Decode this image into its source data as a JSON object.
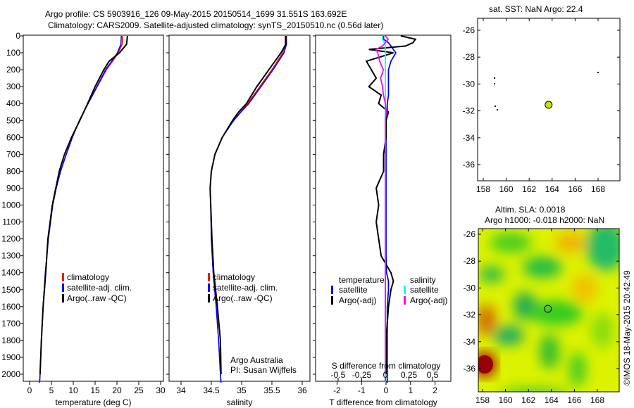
{
  "header": {
    "line1": "Argo profile: CS 5903916_126 09-May-2015 20150514_1699 31.551S 163.692E",
    "line2": "Climatology: CARS2009. Satellite-adjusted climatology: synTS_20150510.nc (0.56d later)"
  },
  "colors": {
    "clim": "#ff0000",
    "sat": "#0000ff",
    "argo": "#000000",
    "sal_sat": "#00ffff",
    "sal_argo": "#ff00ff"
  },
  "chart_data": [
    {
      "type": "line",
      "name": "temperature",
      "xlabel": "temperature (deg C)",
      "xlim": [
        -1,
        31
      ],
      "ylim": [
        2050,
        0
      ],
      "xticks": [
        "0",
        "5",
        "10",
        "15",
        "20",
        "25",
        "30"
      ],
      "xtick_values": [
        0,
        5,
        10,
        15,
        20,
        25,
        30
      ],
      "yticks": [
        "0",
        "100",
        "200",
        "300",
        "400",
        "500",
        "600",
        "700",
        "800",
        "900",
        "1000",
        "1100",
        "1200",
        "1300",
        "1400",
        "1500",
        "1600",
        "1700",
        "1800",
        "1900",
        "2000"
      ],
      "depth": [
        0,
        50,
        100,
        150,
        200,
        300,
        400,
        500,
        600,
        700,
        800,
        900,
        1000,
        1200,
        1400,
        1600,
        1800,
        2000,
        2050
      ],
      "series": [
        {
          "name": "climatology",
          "values": [
            21.3,
            21.2,
            20.3,
            19,
            17.6,
            15.5,
            13.4,
            11.4,
            9.8,
            8.4,
            7.1,
            6.1,
            5.3,
            4.3,
            3.6,
            3.1,
            2.7,
            2.4,
            2.3
          ]
        },
        {
          "name": "satellite-adj. clim.",
          "values": [
            21.0,
            20.9,
            20.1,
            18.8,
            17.4,
            15.4,
            13.4,
            11.4,
            9.8,
            8.4,
            7.1,
            6.1,
            5.3,
            4.3,
            3.6,
            3.1,
            2.7,
            2.4,
            2.3
          ]
        },
        {
          "name": "Argo(..raw -QC)",
          "values": [
            22.4,
            22.2,
            20.6,
            18.2,
            17.0,
            15.0,
            13.3,
            11.5,
            9.6,
            8.0,
            6.8,
            6.0,
            5.2,
            4.2,
            3.7,
            3.1,
            2.7,
            2.4
          ]
        }
      ],
      "legend": [
        "climatology",
        "satellite-adj. clim.",
        "Argo(..raw -QC)"
      ]
    },
    {
      "type": "line",
      "name": "salinity",
      "xlabel": "salinity",
      "xlim": [
        33.8,
        36.2
      ],
      "ylim": [
        2050,
        0
      ],
      "xticks": [
        "34",
        "34.5",
        "35",
        "35.5",
        "36"
      ],
      "xtick_values": [
        34,
        34.5,
        35,
        35.5,
        36
      ],
      "depth": [
        0,
        50,
        100,
        200,
        300,
        400,
        450,
        500,
        600,
        700,
        800,
        900,
        1000,
        1200,
        1400,
        1600,
        1800,
        2000,
        2050
      ],
      "series": [
        {
          "name": "climatology",
          "values": [
            35.72,
            35.72,
            35.68,
            35.5,
            35.3,
            35.1,
            34.98,
            34.86,
            34.68,
            34.56,
            34.5,
            34.48,
            34.49,
            34.5,
            34.53,
            34.58,
            34.62,
            34.65,
            34.66
          ]
        },
        {
          "name": "satellite-adj. clim.",
          "values": [
            35.74,
            35.74,
            35.7,
            35.52,
            35.32,
            35.12,
            34.99,
            34.87,
            34.68,
            34.56,
            34.5,
            34.48,
            34.49,
            34.5,
            34.53,
            34.58,
            34.62,
            34.65,
            34.66
          ]
        },
        {
          "name": "Argo(..raw -QC)",
          "values": [
            35.73,
            35.73,
            35.65,
            35.45,
            35.25,
            35.08,
            34.95,
            34.85,
            34.68,
            34.56,
            34.5,
            34.48,
            34.49,
            34.51,
            34.54,
            34.6,
            34.65,
            34.66
          ]
        }
      ],
      "legend": [
        "climatology",
        "satellite-adj. clim.",
        "Argo(..raw -QC)"
      ],
      "annotation": [
        "Argo Australia",
        "PI: Susan Wijffels"
      ]
    },
    {
      "type": "line",
      "name": "difference",
      "xlabel": "T difference from climatology",
      "xlabel2": "S difference from climatology",
      "xlim": [
        -2.9,
        2.9
      ],
      "ylim": [
        2050,
        0
      ],
      "xticks": [
        "-2",
        "-1",
        "0",
        "1",
        "2"
      ],
      "xtick_values": [
        -2,
        -1,
        0,
        1,
        2
      ],
      "xticks2": [
        "-0.5",
        "-0.25",
        "0",
        "0.25",
        "0.5"
      ],
      "xtick2_values": [
        -0.5,
        -0.25,
        0,
        0.25,
        0.5
      ],
      "depth": [
        0,
        20,
        40,
        60,
        80,
        100,
        150,
        200,
        250,
        300,
        350,
        400,
        450,
        500,
        600,
        700,
        800,
        900,
        1000,
        1100,
        1200,
        1300,
        1400,
        1450,
        1500,
        1600,
        1800,
        2000,
        2050
      ],
      "series": [
        {
          "name": "T satellite",
          "values": [
            -0.1,
            -0.1,
            0.1,
            0.2,
            0.3,
            0.4,
            0.2,
            0.1,
            0.1,
            0.1,
            0.1,
            0.05,
            0.05,
            0.0,
            0.0,
            0.0,
            0.0,
            0.0,
            0.0,
            0,
            0,
            0,
            0.02,
            0.1,
            0.1,
            0.05,
            0.05,
            0.05,
            0.05
          ]
        },
        {
          "name": "T Argo(-adj)",
          "values": [
            0.6,
            1.2,
            1.1,
            0.8,
            -0.7,
            0.3,
            -0.8,
            -0.6,
            -0.4,
            -0.7,
            -0.2,
            -0.3,
            0.1,
            0.0,
            0.0,
            -0.1,
            -0.1,
            -0.4,
            -0.3,
            -0.4,
            -0.3,
            -0.2,
            0.2,
            0.3,
            0.2,
            0.1,
            0.0,
            0.0
          ]
        },
        {
          "name": "S satellite",
          "values": [
            -0.03,
            -0.03,
            -0.01,
            0,
            0,
            0,
            0,
            0,
            0,
            0,
            0,
            0,
            0,
            0,
            0,
            0,
            0,
            0,
            0,
            0,
            0,
            0,
            0,
            0,
            0,
            0,
            0,
            0,
            0
          ]
        },
        {
          "name": "S Argo(-adj)",
          "values": [
            0.0,
            0.03,
            0.0,
            -0.03,
            -0.1,
            -0.08,
            -0.06,
            -0.02,
            -0.05,
            -0.03,
            -0.02,
            0.0,
            0.01,
            0.0,
            0.0,
            0,
            0,
            0,
            0,
            0,
            0,
            0,
            0,
            0,
            0,
            0,
            0,
            0
          ]
        }
      ],
      "legend_left_title": "temperature",
      "legend_right_title": "salinity",
      "legend_left": [
        "satellite",
        "Argo(-adj)"
      ],
      "legend_right": [
        "satellite",
        "Argo(-adj)"
      ]
    }
  ],
  "map1": {
    "title": "sat. SST: NaN Argo: 22.4",
    "xticks": [
      "158",
      "160",
      "162",
      "164",
      "166",
      "168"
    ],
    "yticks": [
      "-26",
      "-28",
      "-30",
      "-32",
      "-34",
      "-36"
    ],
    "float_lon": 163.692,
    "float_lat": -31.551
  },
  "map2": {
    "title1": "Altim. SLA: 0.0018",
    "title2": "Argo h1000: -0.018 h2000: NaN",
    "xticks": [
      "158",
      "160",
      "162",
      "164",
      "166",
      "168"
    ],
    "yticks": [
      "-26",
      "-28",
      "-30",
      "-32",
      "-34",
      "-36"
    ]
  },
  "credit": "©IMOS 18-May-2015 20:42:49"
}
